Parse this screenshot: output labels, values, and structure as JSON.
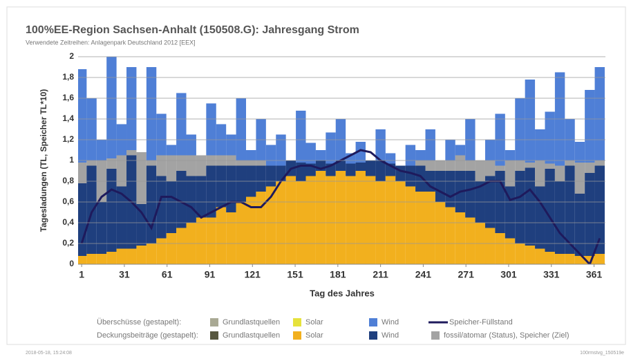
{
  "chart_data": {
    "type": "stacked-bar-line",
    "title": "100%EE-Region  Sachsen-Anhalt (150508.G): Jahresgang Strom",
    "subtitle": "Verwendete Zeitreihen: Anlagenpark Deutschland 2012 [EEX]",
    "x_label": "Tag des Jahres",
    "y_label": "Tagesladungen (TL, Speicher TL*10)",
    "date": "2018-05-18, 15:24:08",
    "file": "100rmstvg_150519e",
    "xlim": [
      -1.5,
      369
    ],
    "xticks": [
      1,
      31,
      61,
      91,
      121,
      151,
      181,
      211,
      241,
      271,
      301,
      331,
      361
    ],
    "ylim": [
      0,
      2
    ],
    "yticks": [
      0,
      {
        "value": 0.2,
        "label": "0,2"
      },
      {
        "value": 0.4,
        "label": "0,4"
      },
      {
        "value": 0.6,
        "label": "0,6"
      },
      {
        "value": 0.8,
        "label": "0,8"
      },
      1,
      {
        "value": 1.2,
        "label": "1,2"
      },
      {
        "value": 1.4,
        "label": "1,4"
      },
      {
        "value": 1.6,
        "label": "1,6"
      },
      {
        "value": 1.8,
        "label": "1,8"
      },
      2
    ],
    "grid": true,
    "x": [
      1,
      8,
      15,
      22,
      29,
      36,
      43,
      50,
      57,
      64,
      71,
      78,
      85,
      92,
      99,
      106,
      113,
      120,
      127,
      134,
      141,
      148,
      155,
      162,
      169,
      176,
      183,
      190,
      197,
      204,
      211,
      218,
      225,
      232,
      239,
      246,
      253,
      260,
      267,
      274,
      281,
      288,
      295,
      302,
      309,
      316,
      323,
      330,
      337,
      344,
      351,
      358,
      365
    ],
    "legend": [
      {
        "label": "Überschüsse (gestapelt):",
        "series": [
          {
            "name": "Grundlastquellen",
            "color": "#a9a994"
          },
          {
            "name": "Solar",
            "color": "#e6e23c"
          },
          {
            "name": "Wind",
            "color": "#4f7fd6",
            "stack": 3,
            "values": [
              0.9,
              0.6,
              0.2,
              1.0,
              0.3,
              0.8,
              0,
              0.9,
              0.4,
              0.1,
              0.6,
              0.2,
              0,
              0.5,
              0.3,
              0.2,
              0.6,
              0.1,
              0.4,
              0.2,
              0.3,
              0,
              0.5,
              0.2,
              0.1,
              0.3,
              0.4,
              0.1,
              0.2,
              0,
              0.3,
              0.1,
              0,
              0.2,
              0.1,
              0.3,
              0,
              0.2,
              0.1,
              0.4,
              0,
              0.2,
              0.5,
              0.1,
              0.6,
              0.8,
              0.3,
              0.5,
              0.9,
              0.4,
              0.2,
              0.7,
              0.9
            ]
          },
          {
            "name": "Speicher-Füllstand",
            "color": "#1e1a5c",
            "line": true,
            "values": [
              0.2,
              0.5,
              0.65,
              0.72,
              0.68,
              0.6,
              0.5,
              0.35,
              0.65,
              0.65,
              0.6,
              0.55,
              0.45,
              0.5,
              0.55,
              0.6,
              0.6,
              0.55,
              0.55,
              0.65,
              0.8,
              0.92,
              0.95,
              0.95,
              0.92,
              0.95,
              1.0,
              1.05,
              1.1,
              1.08,
              1.0,
              0.95,
              0.9,
              0.88,
              0.85,
              0.75,
              0.7,
              0.65,
              0.7,
              0.72,
              0.75,
              0.8,
              0.8,
              0.62,
              0.65,
              0.72,
              0.6,
              0.45,
              0.3,
              0.2,
              0.1,
              0.0,
              0.25
            ]
          }
        ]
      },
      {
        "label": "Deckungsbeiträge (gestapelt):",
        "series": [
          {
            "name": "Grundlastquellen",
            "color": "#57573f"
          },
          {
            "name": "Solar",
            "color": "#f2b01e",
            "stack": 0,
            "values": [
              0.08,
              0.1,
              0.1,
              0.12,
              0.15,
              0.15,
              0.18,
              0.2,
              0.25,
              0.3,
              0.35,
              0.4,
              0.45,
              0.45,
              0.55,
              0.5,
              0.6,
              0.65,
              0.7,
              0.75,
              0.8,
              0.85,
              0.8,
              0.85,
              0.9,
              0.85,
              0.9,
              0.85,
              0.9,
              0.85,
              0.8,
              0.85,
              0.8,
              0.75,
              0.7,
              0.7,
              0.6,
              0.55,
              0.5,
              0.45,
              0.4,
              0.35,
              0.3,
              0.25,
              0.2,
              0.18,
              0.15,
              0.12,
              0.1,
              0.1,
              0.08,
              0.08,
              0.1
            ]
          },
          {
            "name": "Wind",
            "color": "#1f3f7e",
            "stack": 1,
            "values": [
              0.7,
              0.85,
              0.5,
              0.8,
              0.6,
              0.9,
              0.4,
              0.75,
              0.6,
              0.5,
              0.55,
              0.45,
              0.4,
              0.5,
              0.4,
              0.45,
              0.35,
              0.3,
              0.25,
              0.2,
              0.15,
              0.15,
              0.18,
              0.12,
              0.1,
              0.12,
              0.1,
              0.12,
              0.08,
              0.15,
              0.2,
              0.12,
              0.15,
              0.2,
              0.25,
              0.2,
              0.3,
              0.35,
              0.4,
              0.45,
              0.4,
              0.5,
              0.6,
              0.5,
              0.7,
              0.75,
              0.6,
              0.8,
              0.7,
              0.85,
              0.6,
              0.8,
              0.85
            ]
          },
          {
            "name": "fossil/atomar (Status),  Speicher (Ziel)",
            "color": "#a3a3a3",
            "stack": 2,
            "values": [
              0.2,
              0.05,
              0.4,
              0.1,
              0.3,
              0.05,
              0.5,
              0.05,
              0.2,
              0.25,
              0.15,
              0.2,
              0.2,
              0.1,
              0.1,
              0.1,
              0.05,
              0.05,
              0.05,
              0,
              0,
              0,
              0,
              0,
              0,
              0,
              0,
              0,
              0,
              0,
              0,
              0,
              0,
              0,
              0.05,
              0.1,
              0.1,
              0.1,
              0.15,
              0.1,
              0.2,
              0.15,
              0.05,
              0.25,
              0.1,
              0.05,
              0.25,
              0.05,
              0.15,
              0.05,
              0.3,
              0.1,
              0.05
            ]
          }
        ]
      }
    ]
  }
}
